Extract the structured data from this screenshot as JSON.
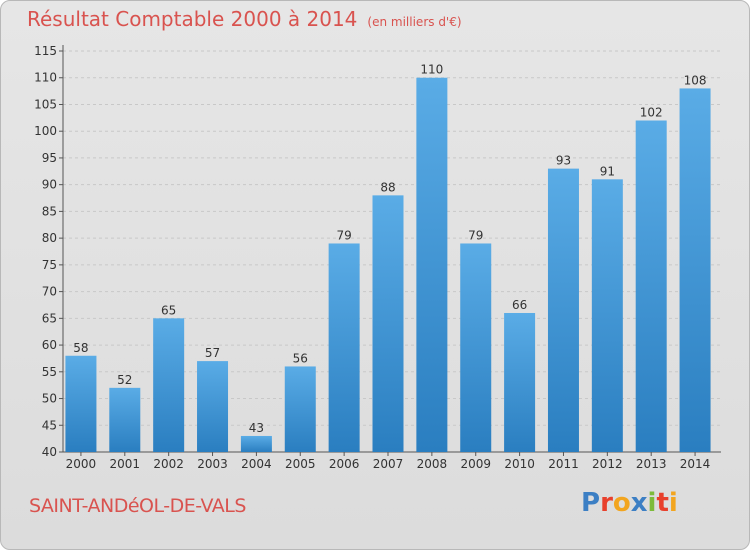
{
  "title": "Résultat Comptable 2000 à 2014",
  "unit_note": "(en milliers d'€)",
  "commune": "SAINT-ANDéOL-DE-VALS",
  "logo": {
    "text": "Proxiti",
    "letters": [
      {
        "ch": "P",
        "color": "#3c7fc4"
      },
      {
        "ch": "r",
        "color": "#e8402c"
      },
      {
        "ch": "o",
        "color": "#f2a51f"
      },
      {
        "ch": "x",
        "color": "#3c7fc4"
      },
      {
        "ch": "i",
        "color": "#7dbb3a"
      },
      {
        "ch": "t",
        "color": "#e8402c"
      },
      {
        "ch": "i",
        "color": "#f2a51f"
      }
    ]
  },
  "colors": {
    "bar_light": "#5aace6",
    "bar_dark": "#2a7ec0",
    "title": "#d9534f",
    "grid": "#c8c8c8"
  },
  "chart_data": {
    "type": "bar",
    "title": "Résultat Comptable 2000 à 2014",
    "categories": [
      "2000",
      "2001",
      "2002",
      "2003",
      "2004",
      "2005",
      "2006",
      "2007",
      "2008",
      "2009",
      "2010",
      "2011",
      "2012",
      "2013",
      "2014"
    ],
    "values": [
      58,
      52,
      65,
      57,
      43,
      56,
      79,
      88,
      110,
      79,
      66,
      93,
      91,
      102,
      108
    ],
    "ylim": [
      40,
      115
    ],
    "yticks": [
      40,
      45,
      50,
      55,
      60,
      65,
      70,
      75,
      80,
      85,
      90,
      95,
      100,
      105,
      110,
      115
    ],
    "grid": true,
    "xlabel": "",
    "ylabel": ""
  }
}
